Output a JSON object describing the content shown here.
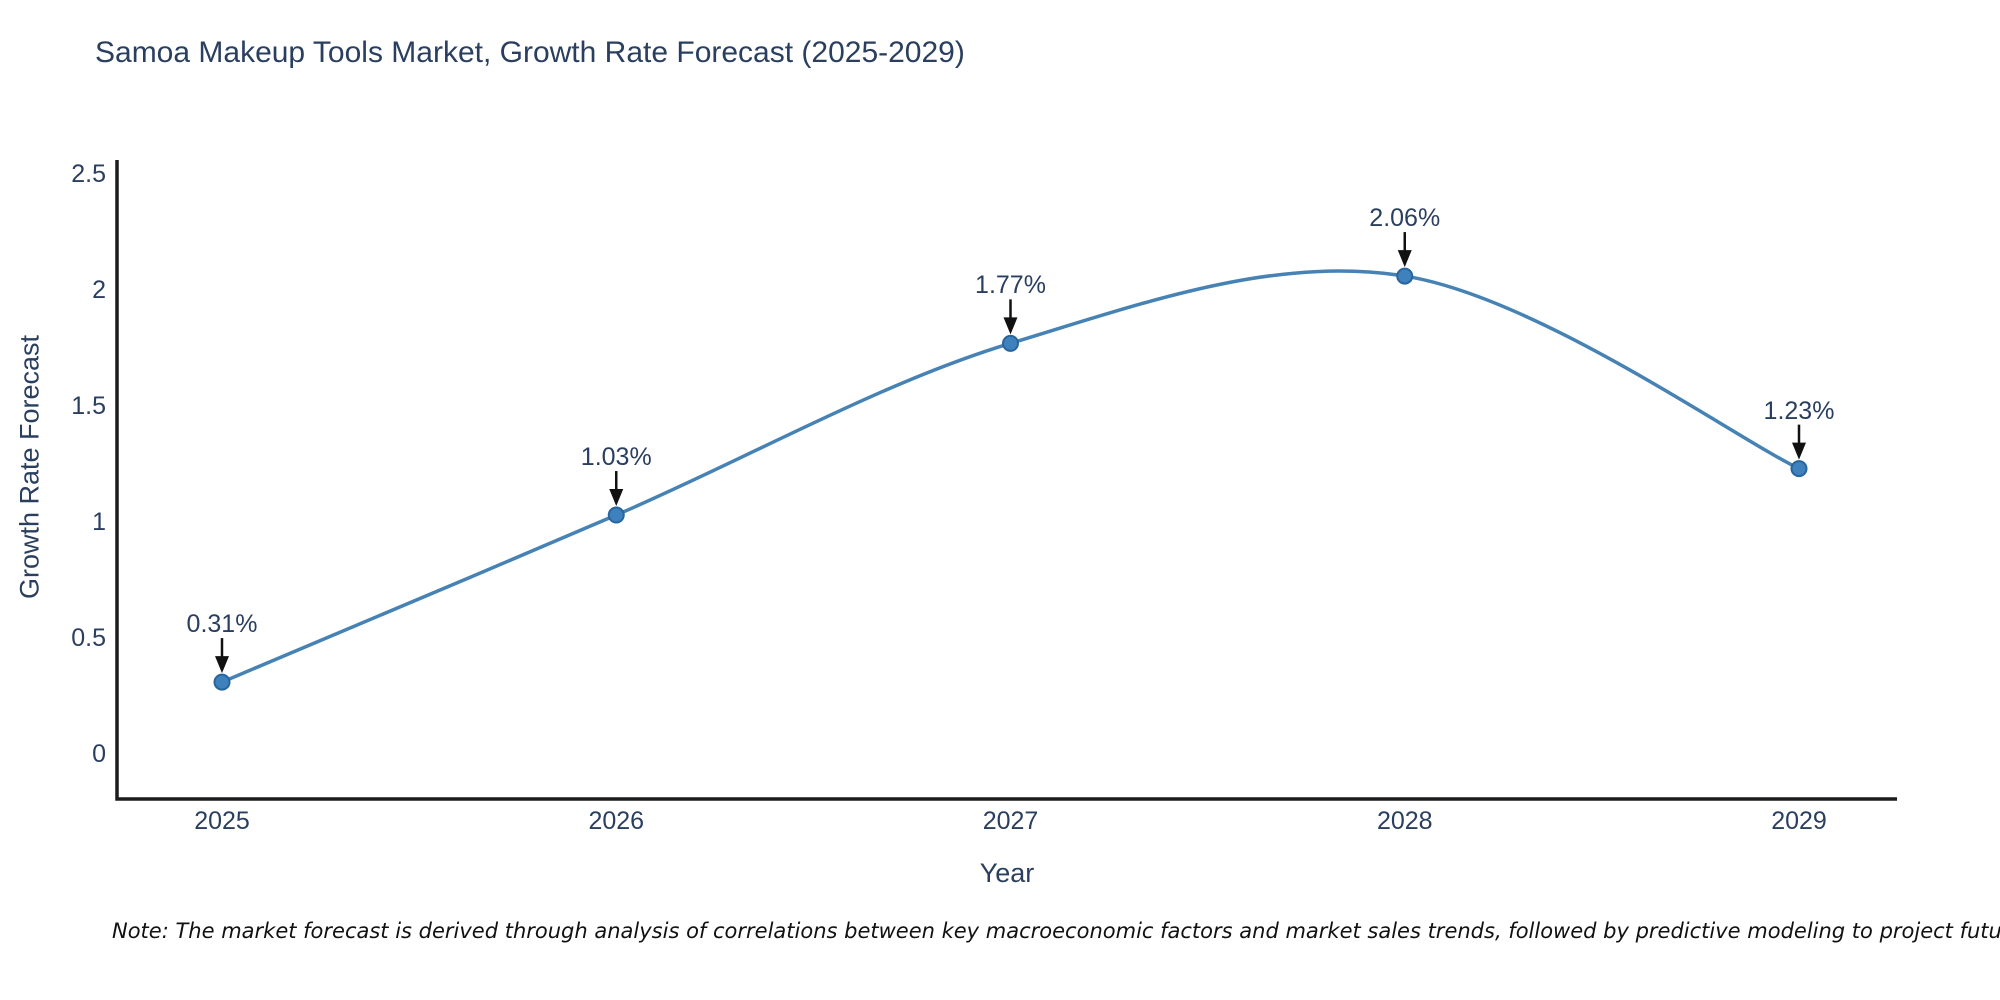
{
  "chart": {
    "title": "Samoa Makeup Tools Market, Growth Rate Forecast (2025-2029)",
    "note": "Note: The market forecast is derived through analysis of correlations between key macroeconomic factors and market sales trends, followed by predictive modeling to project future sales"
  },
  "chart_data": {
    "type": "line",
    "title": "Samoa Makeup Tools Market, Growth Rate Forecast (2025-2029)",
    "xlabel": "Year",
    "ylabel": "Growth Rate Forecast",
    "categories": [
      "2025",
      "2026",
      "2027",
      "2028",
      "2029"
    ],
    "series": [
      {
        "name": "Growth Rate Forecast",
        "values": [
          0.31,
          1.03,
          1.77,
          2.06,
          1.23
        ],
        "point_labels": [
          "0.31%",
          "1.03%",
          "1.77%",
          "2.06%",
          "1.23%"
        ]
      }
    ],
    "line_shape": "spline",
    "markers": true,
    "annotations_arrows": true,
    "yticks": [
      {
        "v": 0,
        "label": "0"
      },
      {
        "v": 0.5,
        "label": "0.5"
      },
      {
        "v": 1,
        "label": "1"
      },
      {
        "v": 1.5,
        "label": "1.5"
      },
      {
        "v": 2,
        "label": "2"
      },
      {
        "v": 2.5,
        "label": "2.5"
      }
    ],
    "ylim": [
      -0.19,
      2.56
    ],
    "grid": false,
    "legend": false,
    "colors": {
      "line": "#4682b4",
      "marker_fill": "#3f81bd",
      "marker_edge": "#27659e",
      "text": "#2a3f5f",
      "axis": "#1c1c1c",
      "arrow": "#111111",
      "background": "#ffffff"
    }
  }
}
